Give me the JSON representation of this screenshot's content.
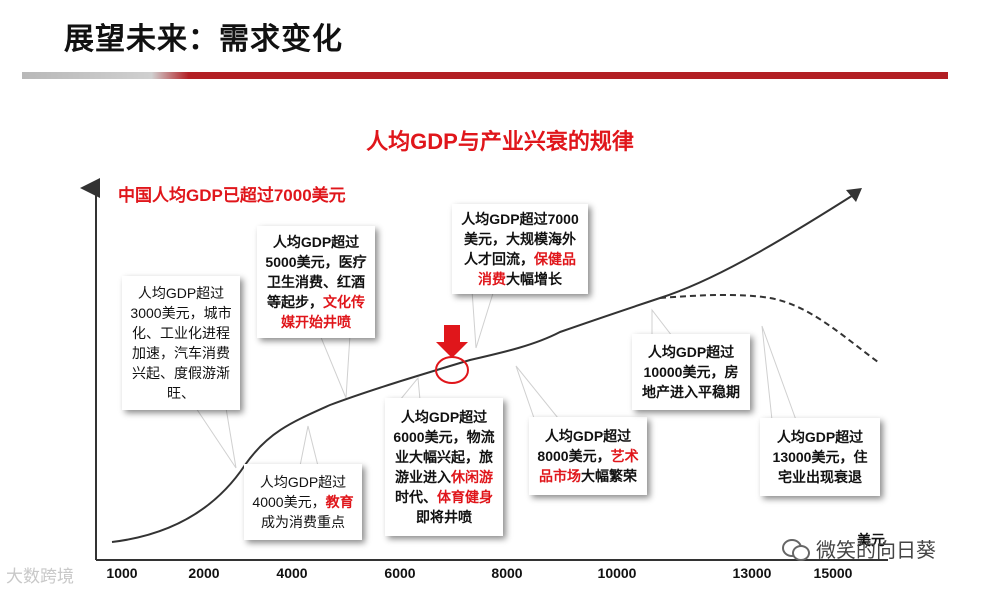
{
  "title": "展望未来：需求变化",
  "chart_title": "人均GDP与产业兴衰的规律",
  "note": "中国人均GDP已超过7000美元",
  "x_ticks": [
    "1000",
    "2000",
    "4000",
    "6000",
    "8000",
    "10000",
    "13000",
    "15000"
  ],
  "x_unit": "美元",
  "boxes": [
    {
      "id": "3000",
      "lines": [
        [
          {
            "t": "人均GDP超过"
          }
        ],
        [
          {
            "t": "3000美元，城市"
          }
        ],
        [
          {
            "t": "化、工业化进程"
          }
        ],
        [
          {
            "t": "加速，汽车消费"
          }
        ],
        [
          {
            "t": "兴起、度假游渐"
          }
        ],
        [
          {
            "t": "旺、"
          }
        ]
      ]
    },
    {
      "id": "4000",
      "lines": [
        [
          {
            "t": "人均GDP超过"
          }
        ],
        [
          {
            "t": "4000美元，"
          },
          {
            "t": "教育",
            "hl": true
          }
        ],
        [
          {
            "t": "成为消费重点"
          }
        ]
      ]
    },
    {
      "id": "5000",
      "lines": [
        [
          {
            "t": "人均GDP超过"
          }
        ],
        [
          {
            "t": "5000美元，医疗"
          }
        ],
        [
          {
            "t": "卫生消费、红酒"
          }
        ],
        [
          {
            "t": "等起步，"
          },
          {
            "t": "文化传",
            "hl": true
          }
        ],
        [
          {
            "t": "媒开始井喷",
            "hl": true
          }
        ]
      ]
    },
    {
      "id": "6000",
      "lines": [
        [
          {
            "t": "人均GDP超过"
          }
        ],
        [
          {
            "t": "6000美元，物流"
          }
        ],
        [
          {
            "t": "业大幅兴起，旅"
          }
        ],
        [
          {
            "t": "游业进入"
          },
          {
            "t": "休闲游",
            "hl": true
          }
        ],
        [
          {
            "t": "时代、"
          },
          {
            "t": "体育健身",
            "hl": true
          }
        ],
        [
          {
            "t": "即将井喷"
          }
        ]
      ]
    },
    {
      "id": "7000",
      "lines": [
        [
          {
            "t": "人均GDP超过7000"
          }
        ],
        [
          {
            "t": "美元，大规模海外"
          }
        ],
        [
          {
            "t": "人才回流，"
          },
          {
            "t": "保健品",
            "hl": true
          }
        ],
        [
          {
            "t": "消费",
            "hl": true
          },
          {
            "t": "大幅增长"
          }
        ]
      ]
    },
    {
      "id": "8000",
      "lines": [
        [
          {
            "t": "人均GDP超过"
          }
        ],
        [
          {
            "t": "8000美元，"
          },
          {
            "t": "艺术",
            "hl": true
          }
        ],
        [
          {
            "t": "品市场",
            "hl": true
          },
          {
            "t": "大幅繁荣"
          }
        ]
      ]
    },
    {
      "id": "10000",
      "lines": [
        [
          {
            "t": "人均GDP超过"
          }
        ],
        [
          {
            "t": "10000美元，房"
          }
        ],
        [
          {
            "t": "地产进入平稳期"
          }
        ]
      ]
    },
    {
      "id": "13000",
      "lines": [
        [
          {
            "t": "人均GDP超过"
          }
        ],
        [
          {
            "t": "13000美元，住"
          }
        ],
        [
          {
            "t": "宅业出现衰退"
          }
        ]
      ]
    }
  ],
  "watermark_left": "大数跨境",
  "watermark_right": "微笑的向日葵",
  "icons": [
    "down-arrow-icon",
    "highlight-circle-icon",
    "wechat-icon"
  ]
}
